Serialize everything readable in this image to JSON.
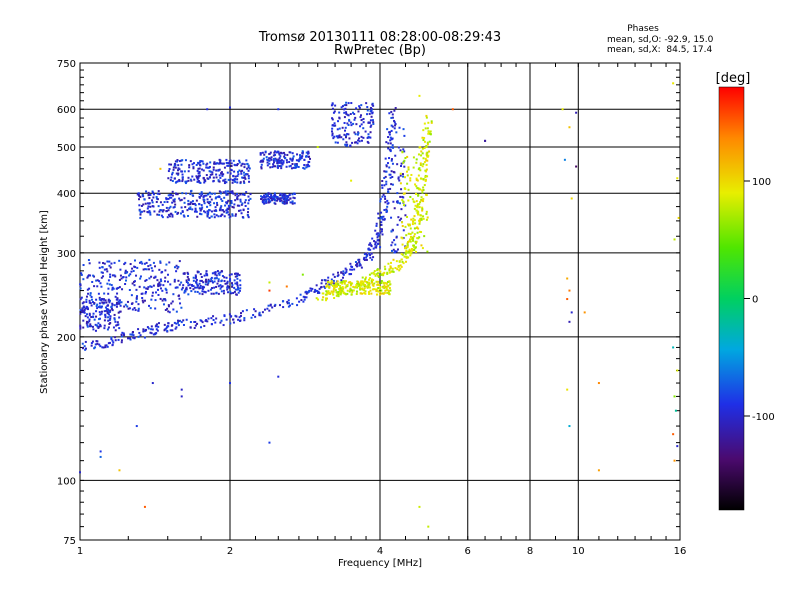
{
  "chart_data": {
    "type": "scatter",
    "title": "Tromsø 20130111 08:28:00-08:29:43",
    "subtitle": "RwPretec (Bp)",
    "xlabel": "Frequency [MHz]",
    "ylabel": "Stationary phase Virtual Height [km]",
    "x_scale": "log2",
    "y_scale": "log",
    "xlim": [
      1,
      16
    ],
    "ylim": [
      75,
      750
    ],
    "x_ticks": [
      "1",
      "2",
      "4",
      "6",
      "8",
      "10",
      "16"
    ],
    "y_ticks": [
      "75",
      "100",
      "200",
      "300",
      "400",
      "500",
      "600",
      "750"
    ],
    "x_gridlines": [
      2,
      4,
      6,
      8,
      10
    ],
    "y_gridlines": [
      100,
      200,
      300,
      400,
      500,
      600
    ],
    "phase_info": {
      "title": "Phases",
      "line1": "mean, sd,O: -92.9, 15.0",
      "line2": "mean, sd,X:  84.5, 17.4"
    },
    "colorbar": {
      "label": "[deg]",
      "range": [
        -180,
        180
      ],
      "ticks": [
        "100",
        "0",
        "-100"
      ],
      "tick_values": [
        100,
        0,
        -100
      ]
    },
    "series": [
      {
        "mode": "O",
        "phase_deg": -95,
        "color": "#1f2fe6",
        "trace": [
          [
            1.0,
            190
          ],
          [
            1.1,
            193
          ],
          [
            1.2,
            198
          ],
          [
            1.3,
            203
          ],
          [
            1.4,
            207
          ],
          [
            1.5,
            210
          ],
          [
            1.6,
            212
          ],
          [
            1.8,
            215
          ],
          [
            2.0,
            218
          ],
          [
            2.2,
            223
          ],
          [
            2.5,
            232
          ],
          [
            2.8,
            243
          ],
          [
            3.0,
            252
          ],
          [
            3.2,
            262
          ],
          [
            3.4,
            272
          ],
          [
            3.6,
            284
          ],
          [
            3.8,
            298
          ],
          [
            3.9,
            310
          ],
          [
            4.0,
            330
          ],
          [
            4.05,
            360
          ],
          [
            4.1,
            400
          ],
          [
            4.15,
            450
          ],
          [
            4.2,
            520
          ],
          [
            4.25,
            600
          ]
        ],
        "clusters": [
          [
            [
              1.0,
              1.6
            ],
            [
              225,
              290
            ]
          ],
          [
            [
              1.6,
              2.1
            ],
            [
              245,
              275
            ]
          ],
          [
            [
              1.3,
              2.2
            ],
            [
              355,
              405
            ]
          ],
          [
            [
              2.3,
              2.7
            ],
            [
              380,
              400
            ]
          ],
          [
            [
              1.5,
              2.2
            ],
            [
              420,
              470
            ]
          ],
          [
            [
              2.3,
              2.9
            ],
            [
              450,
              490
            ]
          ],
          [
            [
              1.0,
              1.2
            ],
            [
              205,
              240
            ]
          ],
          [
            [
              3.2,
              3.9
            ],
            [
              500,
              620
            ]
          ],
          [
            [
              4.2,
              4.5
            ],
            [
              300,
              560
            ]
          ]
        ],
        "scatter": [
          [
            1.4,
            160
          ],
          [
            1.6,
            150
          ],
          [
            2.0,
            160
          ],
          [
            2.5,
            165
          ],
          [
            1.3,
            130
          ],
          [
            1.1,
            115
          ],
          [
            2.4,
            120
          ],
          [
            1.8,
            600
          ],
          [
            2.0,
            605
          ],
          [
            2.5,
            600
          ],
          [
            1.6,
            155
          ],
          [
            6.5,
            515
          ]
        ]
      },
      {
        "mode": "X",
        "phase_deg": 85,
        "color": "#d8e60a",
        "trace": [
          [
            3.0,
            240
          ],
          [
            3.3,
            248
          ],
          [
            3.6,
            258
          ],
          [
            3.9,
            268
          ],
          [
            4.1,
            275
          ],
          [
            4.3,
            282
          ],
          [
            4.5,
            292
          ],
          [
            4.6,
            305
          ],
          [
            4.7,
            325
          ],
          [
            4.75,
            350
          ],
          [
            4.8,
            380
          ],
          [
            4.85,
            420
          ],
          [
            4.9,
            470
          ],
          [
            4.95,
            520
          ],
          [
            5.0,
            580
          ]
        ],
        "clusters": [
          [
            [
              4.4,
              5.0
            ],
            [
              300,
              500
            ]
          ],
          [
            [
              3.1,
              4.2
            ],
            [
              245,
              262
            ]
          ]
        ],
        "scatter": [
          [
            2.4,
            260
          ],
          [
            3.0,
            500
          ],
          [
            3.5,
            425
          ],
          [
            4.8,
            640
          ],
          [
            4.6,
            300
          ],
          [
            5.0,
            80
          ],
          [
            4.8,
            88
          ],
          [
            15.5,
            680
          ],
          [
            15.8,
            430
          ],
          [
            15.6,
            320
          ],
          [
            15.8,
            170
          ]
        ]
      }
    ],
    "noise_points": [
      [
        5.6,
        600,
        150
      ],
      [
        6.5,
        515,
        -120
      ],
      [
        9.3,
        600,
        90
      ],
      [
        9.6,
        550,
        110
      ],
      [
        9.9,
        590,
        -110
      ],
      [
        9.4,
        470,
        -60
      ],
      [
        9.9,
        455,
        -140
      ],
      [
        9.7,
        390,
        100
      ],
      [
        9.5,
        265,
        120
      ],
      [
        9.6,
        250,
        140
      ],
      [
        9.5,
        240,
        150
      ],
      [
        9.7,
        225,
        -100
      ],
      [
        10.3,
        225,
        130
      ],
      [
        9.6,
        215,
        -110
      ],
      [
        9.5,
        155,
        95
      ],
      [
        9.6,
        130,
        -40
      ],
      [
        11.0,
        160,
        135
      ],
      [
        11.0,
        105,
        125
      ],
      [
        15.5,
        190,
        -30
      ],
      [
        15.6,
        150,
        60
      ],
      [
        15.7,
        140,
        -20
      ],
      [
        15.5,
        125,
        150
      ],
      [
        15.8,
        118,
        -100
      ],
      [
        15.6,
        110,
        130
      ],
      [
        15.9,
        355,
        100
      ],
      [
        1.35,
        88,
        150
      ],
      [
        1.0,
        104,
        -100
      ],
      [
        1.2,
        105,
        110
      ],
      [
        1.1,
        112,
        -70
      ],
      [
        1.45,
        450,
        110
      ],
      [
        2.6,
        255,
        140
      ],
      [
        2.4,
        250,
        160
      ],
      [
        2.8,
        270,
        60
      ],
      [
        4.6,
        430,
        90
      ],
      [
        4.5,
        340,
        80
      ]
    ]
  }
}
